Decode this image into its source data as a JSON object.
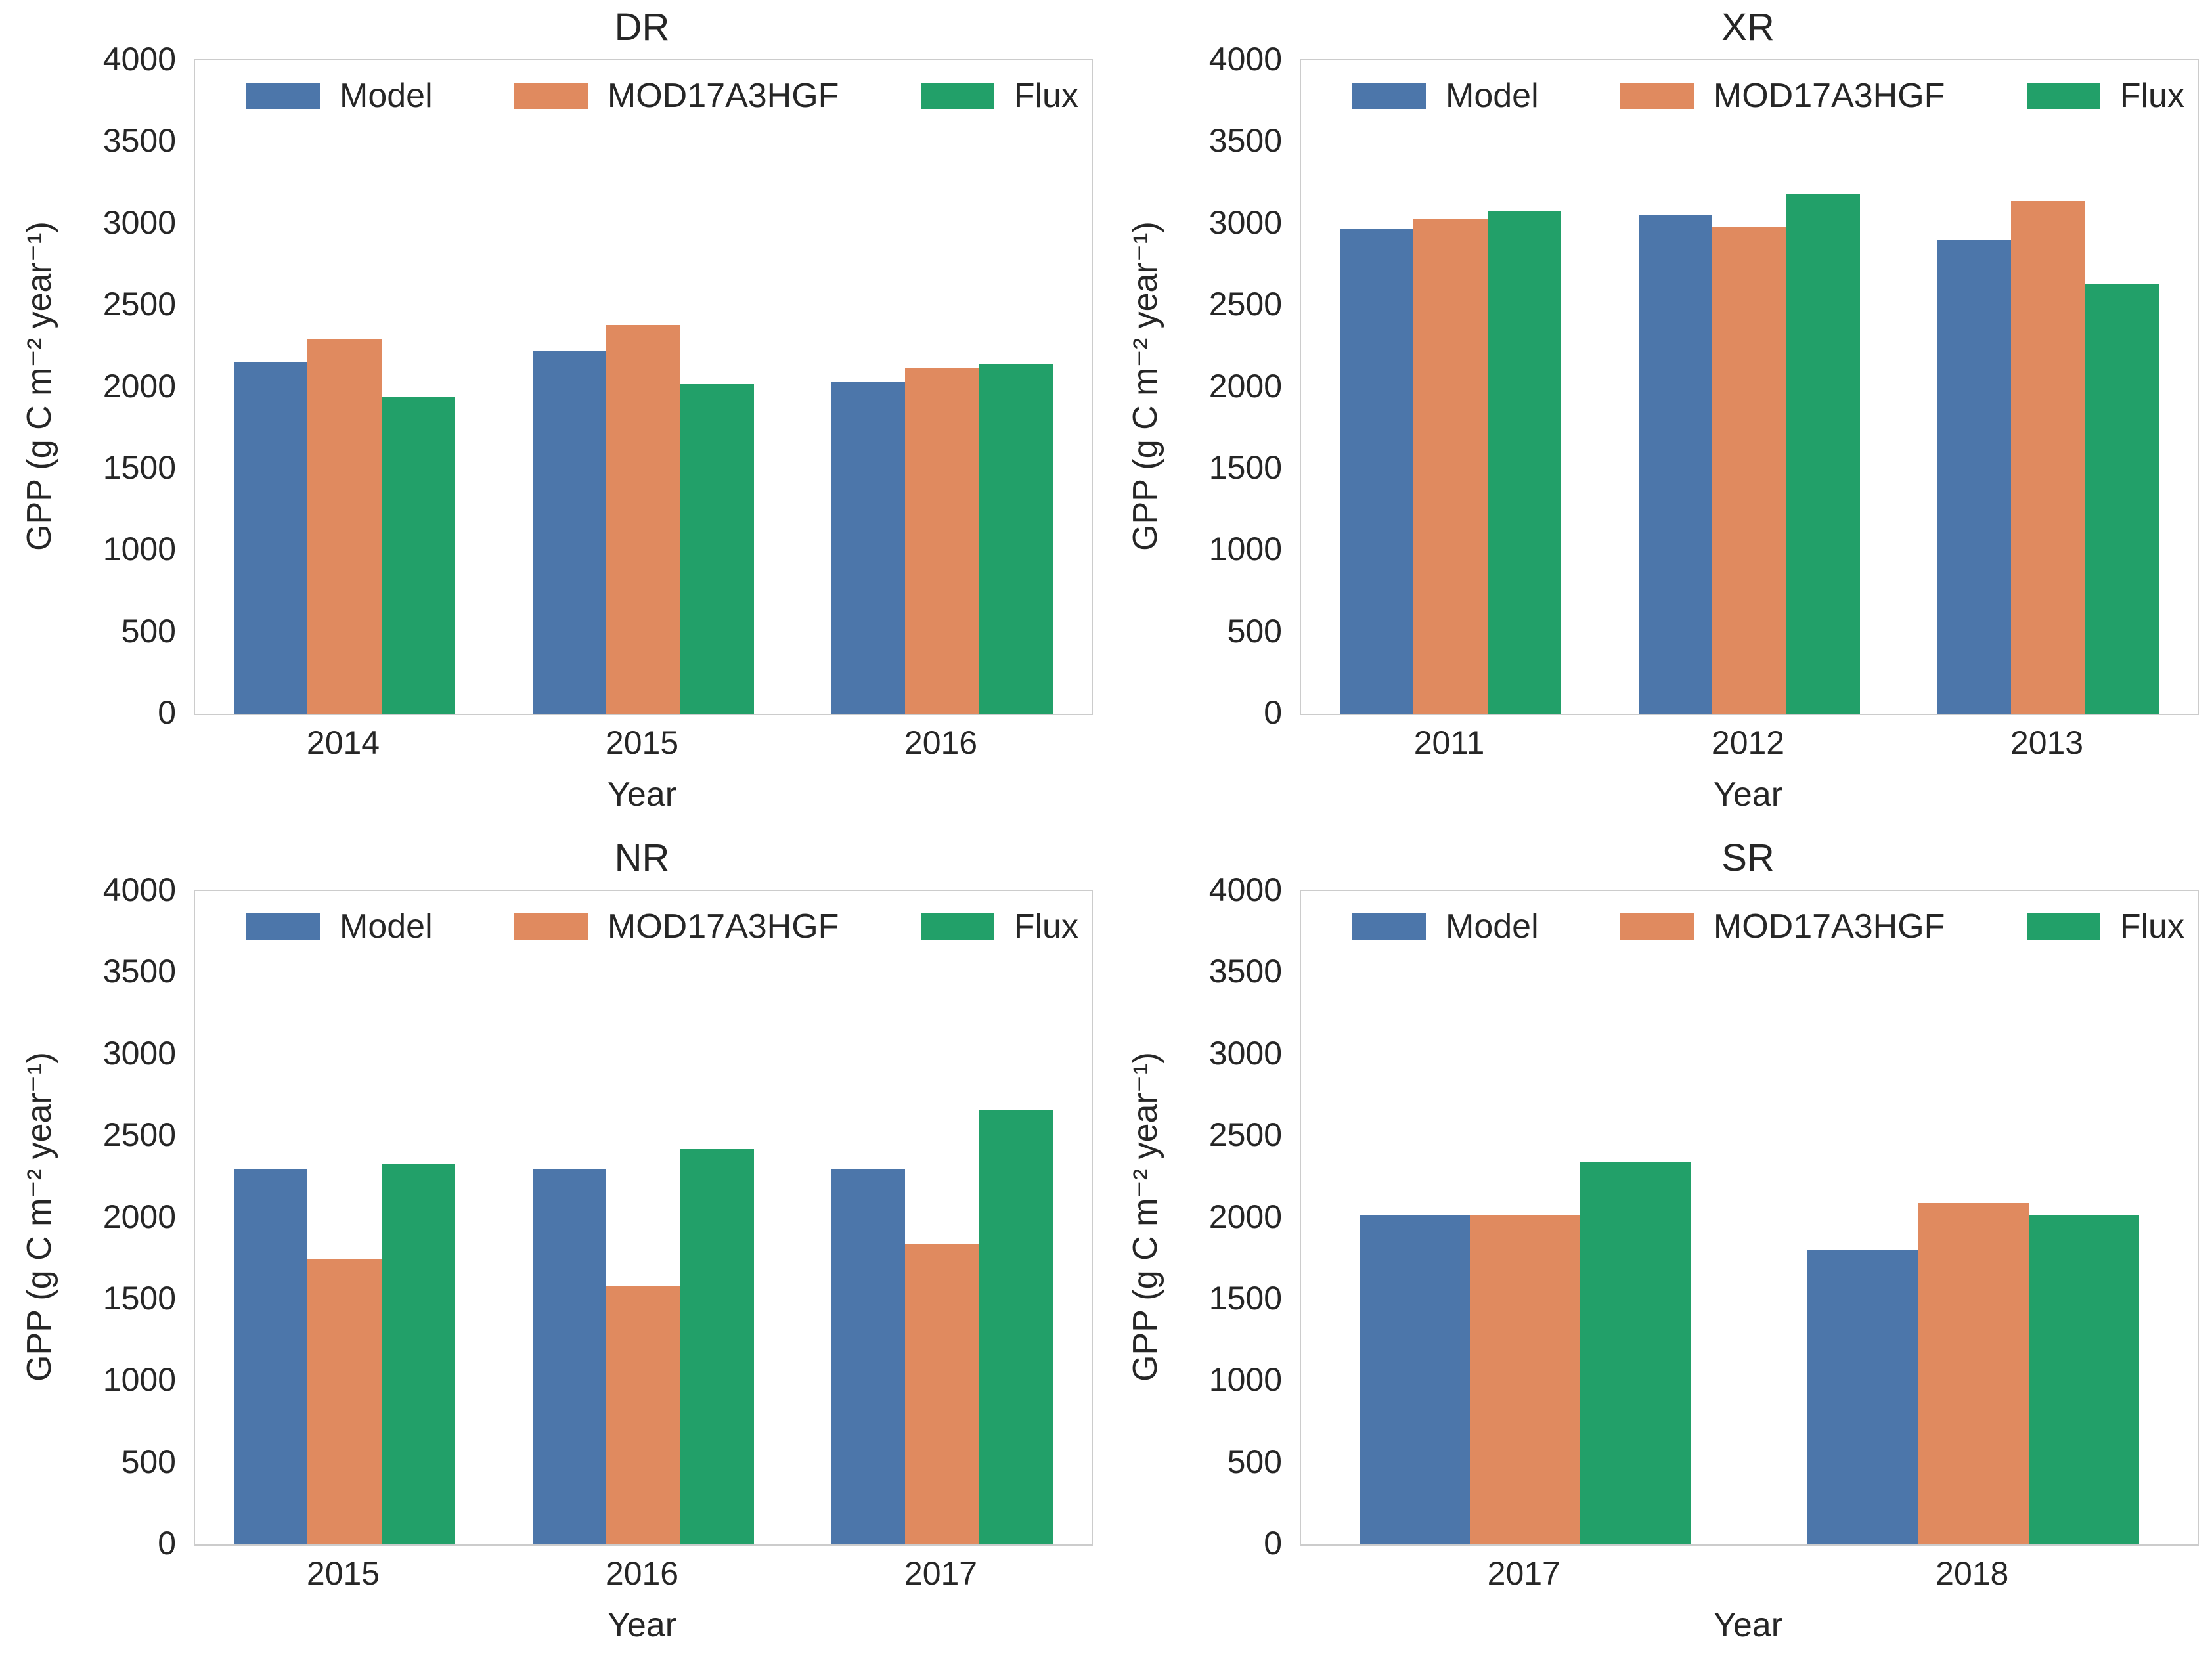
{
  "figure": {
    "ylabel": "GPP (g C m⁻² year⁻¹)",
    "xlabel": "Year",
    "legend": [
      "Model",
      "MOD17A3HGF",
      "Flux"
    ],
    "series_colors": [
      "#4c76aa",
      "#e08a5f",
      "#22a069"
    ],
    "axis_color": "#cccccc",
    "text_color": "#262626",
    "y_ticks": [
      0,
      500,
      1000,
      1500,
      2000,
      2500,
      3000,
      3500,
      4000
    ],
    "ylim": [
      0,
      4000
    ],
    "grid": "off",
    "legend_position": "top-inside-expanded"
  },
  "chart_data": [
    {
      "type": "bar",
      "title": "DR",
      "xlabel": "Year",
      "ylabel": "GPP (g C m⁻² year⁻¹)",
      "ylim": [
        0,
        4000
      ],
      "categories": [
        "2014",
        "2015",
        "2016"
      ],
      "series": [
        {
          "name": "Model",
          "values": [
            2150,
            2220,
            2030
          ]
        },
        {
          "name": "MOD17A3HGF",
          "values": [
            2290,
            2380,
            2120
          ]
        },
        {
          "name": "Flux",
          "values": [
            1940,
            2020,
            2140
          ]
        }
      ]
    },
    {
      "type": "bar",
      "title": "XR",
      "xlabel": "Year",
      "ylabel": "GPP (g C m⁻² year⁻¹)",
      "ylim": [
        0,
        4000
      ],
      "categories": [
        "2011",
        "2012",
        "2013"
      ],
      "series": [
        {
          "name": "Model",
          "values": [
            2970,
            3050,
            2900
          ]
        },
        {
          "name": "MOD17A3HGF",
          "values": [
            3030,
            2980,
            3140
          ]
        },
        {
          "name": "Flux",
          "values": [
            3080,
            3180,
            2630
          ]
        }
      ]
    },
    {
      "type": "bar",
      "title": "NR",
      "xlabel": "Year",
      "ylabel": "GPP (g C m⁻² year⁻¹)",
      "ylim": [
        0,
        4000
      ],
      "categories": [
        "2015",
        "2016",
        "2017"
      ],
      "series": [
        {
          "name": "Model",
          "values": [
            2300,
            2300,
            2300
          ]
        },
        {
          "name": "MOD17A3HGF",
          "values": [
            1750,
            1580,
            1840
          ]
        },
        {
          "name": "Flux",
          "values": [
            2330,
            2420,
            2660
          ]
        }
      ]
    },
    {
      "type": "bar",
      "title": "SR",
      "xlabel": "Year",
      "ylabel": "GPP (g C m⁻² year⁻¹)",
      "ylim": [
        0,
        4000
      ],
      "categories": [
        "2017",
        "2018"
      ],
      "series": [
        {
          "name": "Model",
          "values": [
            2020,
            1800
          ]
        },
        {
          "name": "MOD17A3HGF",
          "values": [
            2020,
            2090
          ]
        },
        {
          "name": "Flux",
          "values": [
            2340,
            2020
          ]
        }
      ]
    }
  ]
}
